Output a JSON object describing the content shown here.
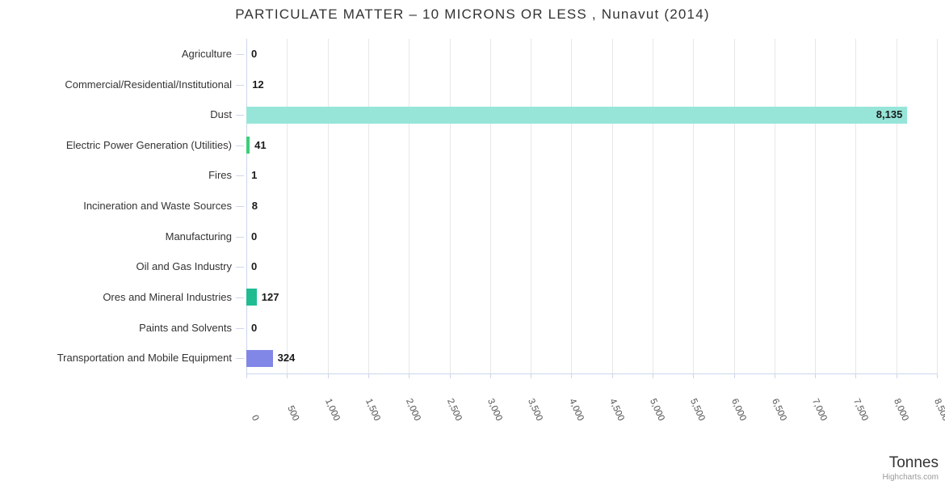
{
  "chart_data": {
    "type": "bar",
    "title": "PARTICULATE MATTER – 10 MICRONS OR LESS , Nunavut (2014)",
    "categories": [
      "Agriculture",
      "Commercial/Residential/Institutional",
      "Dust",
      "Electric Power Generation (Utilities)",
      "Fires",
      "Incineration and Waste Sources",
      "Manufacturing",
      "Oil and Gas Industry",
      "Ores and Mineral Industries",
      "Paints and Solvents",
      "Transportation and Mobile Equipment"
    ],
    "values": [
      0,
      12,
      8135,
      41,
      1,
      8,
      0,
      0,
      127,
      0,
      324
    ],
    "value_labels": [
      "0",
      "12",
      "8,135",
      "41",
      "1",
      "8",
      "0",
      "0",
      "127",
      "0",
      "324"
    ],
    "bar_colors": [
      null,
      null,
      "#96e5d8",
      "#3bce78",
      null,
      null,
      null,
      null,
      "#1fbc92",
      null,
      "#8187e6"
    ],
    "xlim": [
      0,
      8500
    ],
    "tick_interval": 500,
    "x_tick_labels": [
      "0",
      "500",
      "1,000",
      "1,500",
      "2,000",
      "2,500",
      "3,000",
      "3,500",
      "4,000",
      "4,500",
      "5,000",
      "5,500",
      "6,000",
      "6,500",
      "7,000",
      "7,500",
      "8,000",
      "8,500"
    ],
    "axis_title": "Tonnes",
    "credits": "Highcharts.com",
    "grid": true,
    "legend": false,
    "layout_hint": "horizontal bars, value axis bottom 0-8500, rotated tick labels, axis title bottom-right",
    "colors": {
      "background": "#ffffff",
      "grid": "#e7e7e7",
      "axis": "#ccd6eb",
      "title_text": "#333333",
      "category_text": "#333333",
      "tick_text": "#555555",
      "value_text": "#1a1a1a",
      "axis_title_text": "#333333",
      "credits_text": "#999999"
    }
  }
}
